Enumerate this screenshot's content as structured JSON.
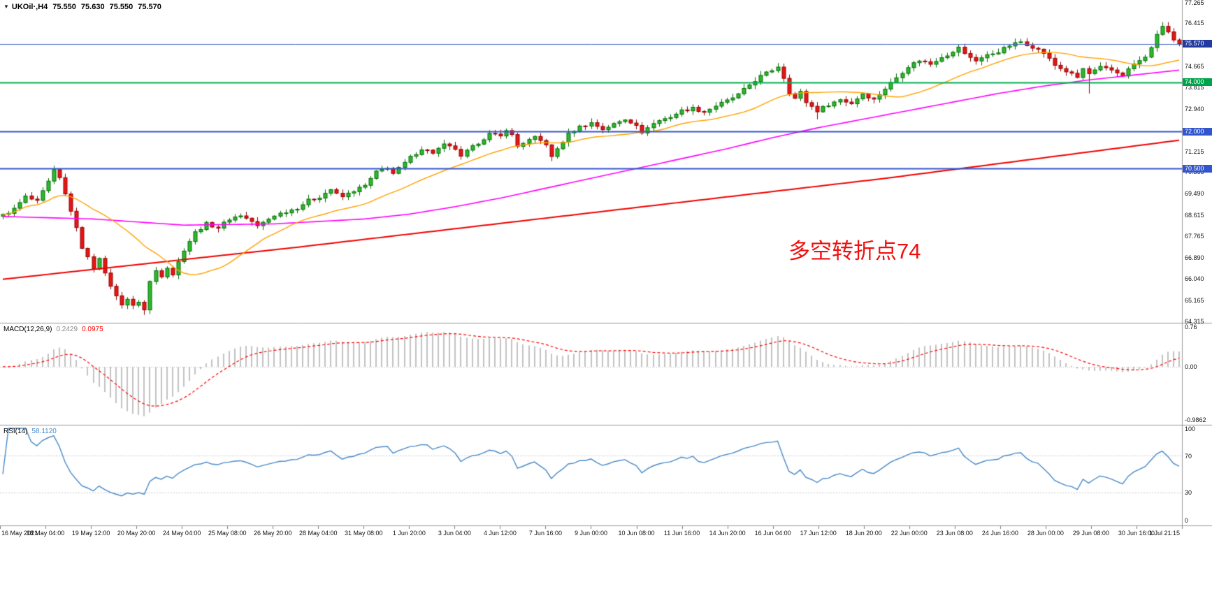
{
  "window": {
    "symbol_period": "UKOil·,H4",
    "ohlc": {
      "open": "75.550",
      "high": "75.630",
      "low": "75.550",
      "close": "75.570"
    }
  },
  "icons": {
    "dropdown_marker": "▼"
  },
  "annotation": {
    "text": "多空转折点74",
    "color": "#f01010"
  },
  "colors": {
    "background": "#ffffff",
    "divider": "#9a9a9a",
    "axis_text": "#111111",
    "up_fill": "#2db92d",
    "up_edge": "#056d05",
    "down_fill": "#ea1515",
    "down_edge": "#8d0404",
    "ma_fast": "#ffa200",
    "ma_mid": "#ff00ff",
    "ma_slow": "#f00000",
    "macd_hist": "#c2c2c2",
    "macd_signal": "#ff0000",
    "macd_value_text": "#8a8a8a",
    "rsi_line": "#4788c7",
    "level_line": "#c8c8c8",
    "grid_zero": "#c0c0c0"
  },
  "chart_data": {
    "type": "candlestick",
    "symbol": "UKOil",
    "timeframe": "H4",
    "title": "UKOil·,H4",
    "current_ohlc": {
      "open": 75.55,
      "high": 75.63,
      "low": 75.55,
      "close": 75.57
    },
    "candle_count": 209,
    "y_axis": {
      "min": 64.315,
      "max": 77.265,
      "ticks": [
        "77.265",
        "76.415",
        "74.665",
        "73.815",
        "72.940",
        "71.215",
        "70.365",
        "69.490",
        "68.615",
        "67.765",
        "66.890",
        "66.040",
        "65.165",
        "64.315"
      ]
    },
    "x_axis": {
      "ticks": [
        "16 May 2021",
        "18 May 04:00",
        "19 May 12:00",
        "20 May 20:00",
        "24 May 04:00",
        "25 May 08:00",
        "26 May 20:00",
        "28 May 04:00",
        "31 May 08:00",
        "1 Jun 20:00",
        "3 Jun 04:00",
        "4 Jun 12:00",
        "7 Jun 16:00",
        "9 Jun 00:00",
        "10 Jun 08:00",
        "11 Jun 16:00",
        "14 Jun 20:00",
        "16 Jun 04:00",
        "17 Jun 12:00",
        "18 Jun 20:00",
        "22 Jun 00:00",
        "23 Jun 08:00",
        "24 Jun 16:00",
        "28 Jun 00:00",
        "29 Jun 08:00",
        "30 Jun 16:00",
        "1 Jul 21:15"
      ]
    },
    "horizontal_lines": [
      {
        "label": "75.570",
        "value": 75.57,
        "line_color": "#4766c8",
        "tag_color": "#233a9e",
        "width": 1,
        "role": "bid-price"
      },
      {
        "label": "74.000",
        "value": 74.0,
        "line_color": "#00b050",
        "tag_color": "#00a14b",
        "width": 2,
        "role": "pivot-level"
      },
      {
        "label": "72.000",
        "value": 72.0,
        "line_color": "#3355cc",
        "tag_color": "#3355cc",
        "width": 2,
        "role": "support-level"
      },
      {
        "label": "70.500",
        "value": 70.5,
        "line_color": "#3355cc",
        "tag_color": "#3355cc",
        "width": 2,
        "role": "support-level"
      }
    ],
    "close_path": [
      [
        0,
        68.6
      ],
      [
        2,
        68.85
      ],
      [
        4,
        69.35
      ],
      [
        6,
        69.15
      ],
      [
        8,
        69.95
      ],
      [
        9,
        70.4
      ],
      [
        10,
        70.1
      ],
      [
        12,
        68.8
      ],
      [
        14,
        67.3
      ],
      [
        16,
        66.45
      ],
      [
        17,
        66.9
      ],
      [
        18,
        66.2
      ],
      [
        20,
        65.3
      ],
      [
        21,
        65.0
      ],
      [
        22,
        65.2
      ],
      [
        23,
        64.9
      ],
      [
        24,
        65.1
      ],
      [
        25,
        64.75
      ],
      [
        26,
        65.9
      ],
      [
        27,
        66.35
      ],
      [
        28,
        66.15
      ],
      [
        29,
        66.5
      ],
      [
        30,
        66.2
      ],
      [
        32,
        67.2
      ],
      [
        34,
        67.9
      ],
      [
        36,
        68.25
      ],
      [
        38,
        68.1
      ],
      [
        40,
        68.45
      ],
      [
        42,
        68.6
      ],
      [
        44,
        68.35
      ],
      [
        45,
        68.15
      ],
      [
        46,
        68.3
      ],
      [
        48,
        68.6
      ],
      [
        50,
        68.75
      ],
      [
        52,
        68.9
      ],
      [
        54,
        69.2
      ],
      [
        56,
        69.35
      ],
      [
        58,
        69.65
      ],
      [
        59,
        69.45
      ],
      [
        60,
        69.35
      ],
      [
        62,
        69.6
      ],
      [
        64,
        69.8
      ],
      [
        66,
        70.35
      ],
      [
        68,
        70.55
      ],
      [
        69,
        70.3
      ],
      [
        70,
        70.5
      ],
      [
        72,
        70.95
      ],
      [
        74,
        71.3
      ],
      [
        76,
        71.15
      ],
      [
        78,
        71.45
      ],
      [
        80,
        71.3
      ],
      [
        81,
        70.95
      ],
      [
        82,
        71.2
      ],
      [
        84,
        71.55
      ],
      [
        86,
        71.9
      ],
      [
        88,
        71.8
      ],
      [
        89,
        72.1
      ],
      [
        90,
        71.85
      ],
      [
        91,
        71.4
      ],
      [
        92,
        71.55
      ],
      [
        94,
        71.75
      ],
      [
        96,
        71.5
      ],
      [
        97,
        70.95
      ],
      [
        98,
        71.3
      ],
      [
        100,
        71.9
      ],
      [
        102,
        72.2
      ],
      [
        104,
        72.35
      ],
      [
        106,
        72.1
      ],
      [
        108,
        72.3
      ],
      [
        110,
        72.5
      ],
      [
        112,
        72.3
      ],
      [
        113,
        71.9
      ],
      [
        114,
        72.2
      ],
      [
        116,
        72.45
      ],
      [
        118,
        72.6
      ],
      [
        120,
        72.85
      ],
      [
        122,
        72.95
      ],
      [
        124,
        72.8
      ],
      [
        126,
        73.05
      ],
      [
        128,
        73.25
      ],
      [
        130,
        73.5
      ],
      [
        132,
        73.9
      ],
      [
        134,
        74.25
      ],
      [
        136,
        74.5
      ],
      [
        137,
        74.65
      ],
      [
        138,
        74.2
      ],
      [
        139,
        73.6
      ],
      [
        140,
        73.35
      ],
      [
        141,
        73.6
      ],
      [
        142,
        73.2
      ],
      [
        144,
        72.85
      ],
      [
        146,
        73.1
      ],
      [
        148,
        73.3
      ],
      [
        150,
        73.15
      ],
      [
        152,
        73.55
      ],
      [
        154,
        73.3
      ],
      [
        156,
        73.75
      ],
      [
        158,
        74.2
      ],
      [
        160,
        74.65
      ],
      [
        162,
        74.9
      ],
      [
        164,
        74.75
      ],
      [
        166,
        75.05
      ],
      [
        168,
        75.2
      ],
      [
        169,
        75.45
      ],
      [
        170,
        75.15
      ],
      [
        172,
        74.9
      ],
      [
        174,
        75.1
      ],
      [
        176,
        75.25
      ],
      [
        178,
        75.5
      ],
      [
        180,
        75.65
      ],
      [
        182,
        75.45
      ],
      [
        184,
        75.2
      ],
      [
        186,
        74.7
      ],
      [
        188,
        74.45
      ],
      [
        190,
        74.2
      ],
      [
        191,
        74.55
      ],
      [
        192,
        74.35
      ],
      [
        194,
        74.6
      ],
      [
        196,
        74.5
      ],
      [
        198,
        74.3
      ],
      [
        200,
        74.75
      ],
      [
        202,
        75.0
      ],
      [
        204,
        75.9
      ],
      [
        205,
        76.3
      ],
      [
        206,
        76.05
      ],
      [
        207,
        75.7
      ],
      [
        208,
        75.57
      ]
    ],
    "wick_spikes": [
      {
        "i": 9,
        "high": 70.62
      },
      {
        "i": 25,
        "low": 64.55
      },
      {
        "i": 97,
        "low": 70.8
      },
      {
        "i": 144,
        "low": 72.5
      },
      {
        "i": 192,
        "low": 73.55
      },
      {
        "i": 205,
        "high": 76.45
      }
    ],
    "moving_averages": {
      "fast": {
        "color_key": "ma_fast",
        "period": 21,
        "method": "sma_of_close"
      },
      "mid": {
        "color_key": "ma_mid",
        "path": [
          [
            0,
            68.55
          ],
          [
            16,
            68.45
          ],
          [
            32,
            68.2
          ],
          [
            48,
            68.25
          ],
          [
            64,
            68.45
          ],
          [
            72,
            68.65
          ],
          [
            80,
            68.95
          ],
          [
            88,
            69.3
          ],
          [
            96,
            69.7
          ],
          [
            104,
            70.1
          ],
          [
            112,
            70.5
          ],
          [
            120,
            70.9
          ],
          [
            128,
            71.3
          ],
          [
            136,
            71.75
          ],
          [
            144,
            72.15
          ],
          [
            152,
            72.5
          ],
          [
            160,
            72.85
          ],
          [
            168,
            73.2
          ],
          [
            176,
            73.55
          ],
          [
            184,
            73.85
          ],
          [
            192,
            74.1
          ],
          [
            200,
            74.3
          ],
          [
            208,
            74.5
          ]
        ]
      },
      "slow": {
        "color_key": "ma_slow",
        "path": [
          [
            0,
            66.0
          ],
          [
            52,
            67.3
          ],
          [
            104,
            68.7
          ],
          [
            156,
            70.1
          ],
          [
            208,
            71.65
          ]
        ]
      }
    },
    "macd": {
      "label": "MACD(12,26,9)",
      "value_main": "0.2429",
      "value_signal": "0.0975",
      "fast": 12,
      "slow": 26,
      "signal": 9,
      "max": 0.76,
      "min": -0.9862,
      "axis": [
        {
          "label": "0.76",
          "value": 0.76
        },
        {
          "label": "0.00",
          "value": 0.0
        },
        {
          "label": "-0.9862",
          "value": -0.9862
        }
      ]
    },
    "rsi": {
      "label": "RSI(14)",
      "period": 14,
      "value": "58.1120",
      "max": 100,
      "min": 0,
      "levels": [
        70,
        30
      ],
      "axis": [
        {
          "label": "100",
          "value": 100
        },
        {
          "label": "70",
          "value": 70
        },
        {
          "label": "30",
          "value": 30
        },
        {
          "label": "0",
          "value": 0
        }
      ]
    }
  }
}
